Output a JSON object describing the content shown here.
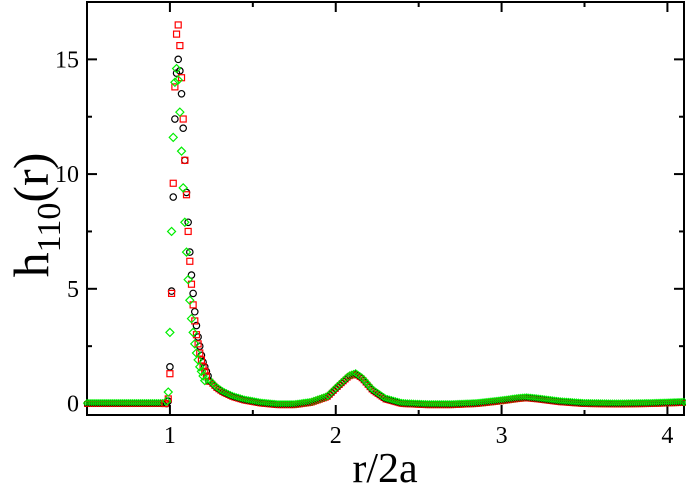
{
  "chart_data": {
    "type": "scatter",
    "title": "",
    "xlabel": "r/2a",
    "ylabel": {
      "main": "h",
      "sub": "110",
      "tail": "(r)"
    },
    "xlim": [
      0.5,
      4.1
    ],
    "ylim": [
      -0.5,
      17.5
    ],
    "xticks": [
      1,
      2,
      3,
      4
    ],
    "yticks": [
      0,
      5,
      10,
      15
    ],
    "grid": false,
    "legend": "none",
    "series": [
      {
        "marker": "circle",
        "color": "#000000",
        "points": [
          [
            0.98,
            0.0
          ],
          [
            0.99,
            0.1
          ],
          [
            1.0,
            1.6
          ],
          [
            1.01,
            4.9
          ],
          [
            1.02,
            9.0
          ],
          [
            1.03,
            12.4
          ],
          [
            1.04,
            14.4
          ],
          [
            1.05,
            15.0
          ],
          [
            1.06,
            14.5
          ],
          [
            1.07,
            13.5
          ],
          [
            1.08,
            12.0
          ],
          [
            1.09,
            10.6
          ],
          [
            1.1,
            9.2
          ],
          [
            1.11,
            7.9
          ],
          [
            1.12,
            6.6
          ],
          [
            1.13,
            5.6
          ],
          [
            1.14,
            4.8
          ],
          [
            1.15,
            4.0
          ],
          [
            1.16,
            3.4
          ],
          [
            1.17,
            2.9
          ],
          [
            1.18,
            2.5
          ],
          [
            1.19,
            2.1
          ],
          [
            1.2,
            1.8
          ],
          [
            1.21,
            1.6
          ],
          [
            1.22,
            1.4
          ],
          [
            1.23,
            1.2
          ]
        ]
      },
      {
        "marker": "square",
        "color": "#ff0000",
        "points": [
          [
            0.97,
            0.0
          ],
          [
            0.99,
            0.2
          ],
          [
            1.0,
            1.3
          ],
          [
            1.01,
            4.8
          ],
          [
            1.02,
            9.6
          ],
          [
            1.03,
            13.8
          ],
          [
            1.04,
            16.1
          ],
          [
            1.05,
            16.5
          ],
          [
            1.06,
            15.6
          ],
          [
            1.07,
            14.2
          ],
          [
            1.08,
            12.4
          ],
          [
            1.09,
            10.6
          ],
          [
            1.1,
            9.1
          ],
          [
            1.11,
            7.5
          ],
          [
            1.12,
            6.2
          ],
          [
            1.13,
            5.2
          ],
          [
            1.14,
            4.3
          ],
          [
            1.15,
            3.6
          ],
          [
            1.16,
            3.0
          ],
          [
            1.17,
            2.6
          ],
          [
            1.18,
            2.2
          ],
          [
            1.19,
            1.9
          ],
          [
            1.2,
            1.6
          ],
          [
            1.21,
            1.4
          ],
          [
            1.22,
            1.2
          ]
        ]
      },
      {
        "marker": "diamond",
        "color": "#00ee00",
        "points": [
          [
            0.98,
            0.1
          ],
          [
            0.99,
            0.5
          ],
          [
            1.0,
            3.1
          ],
          [
            1.01,
            7.5
          ],
          [
            1.02,
            11.6
          ],
          [
            1.03,
            14.0
          ],
          [
            1.04,
            14.6
          ],
          [
            1.05,
            14.1
          ],
          [
            1.06,
            12.7
          ],
          [
            1.07,
            11.0
          ],
          [
            1.08,
            9.4
          ],
          [
            1.09,
            7.9
          ],
          [
            1.1,
            6.6
          ],
          [
            1.11,
            5.4
          ],
          [
            1.12,
            4.5
          ],
          [
            1.13,
            3.7
          ],
          [
            1.14,
            3.1
          ],
          [
            1.15,
            2.6
          ],
          [
            1.16,
            2.2
          ],
          [
            1.17,
            1.9
          ],
          [
            1.18,
            1.6
          ],
          [
            1.19,
            1.4
          ],
          [
            1.2,
            1.2
          ],
          [
            1.21,
            1.0
          ]
        ]
      }
    ],
    "baseline_curve": {
      "note_series": "dense overlapping markers along the low-amplitude tail",
      "points": [
        [
          0.5,
          0.0
        ],
        [
          0.9,
          0.0
        ],
        [
          0.97,
          0.0
        ],
        [
          1.24,
          1.0
        ],
        [
          1.28,
          0.7
        ],
        [
          1.32,
          0.5
        ],
        [
          1.38,
          0.3
        ],
        [
          1.45,
          0.15
        ],
        [
          1.55,
          0.02
        ],
        [
          1.65,
          -0.05
        ],
        [
          1.75,
          -0.05
        ],
        [
          1.85,
          0.05
        ],
        [
          1.95,
          0.3
        ],
        [
          2.02,
          0.8
        ],
        [
          2.08,
          1.2
        ],
        [
          2.12,
          1.3
        ],
        [
          2.16,
          1.1
        ],
        [
          2.22,
          0.6
        ],
        [
          2.3,
          0.2
        ],
        [
          2.4,
          0.0
        ],
        [
          2.55,
          -0.05
        ],
        [
          2.7,
          -0.05
        ],
        [
          2.85,
          0.0
        ],
        [
          3.0,
          0.12
        ],
        [
          3.1,
          0.22
        ],
        [
          3.15,
          0.25
        ],
        [
          3.22,
          0.2
        ],
        [
          3.35,
          0.08
        ],
        [
          3.5,
          0.0
        ],
        [
          3.7,
          -0.02
        ],
        [
          3.9,
          0.0
        ],
        [
          4.1,
          0.05
        ]
      ]
    }
  }
}
